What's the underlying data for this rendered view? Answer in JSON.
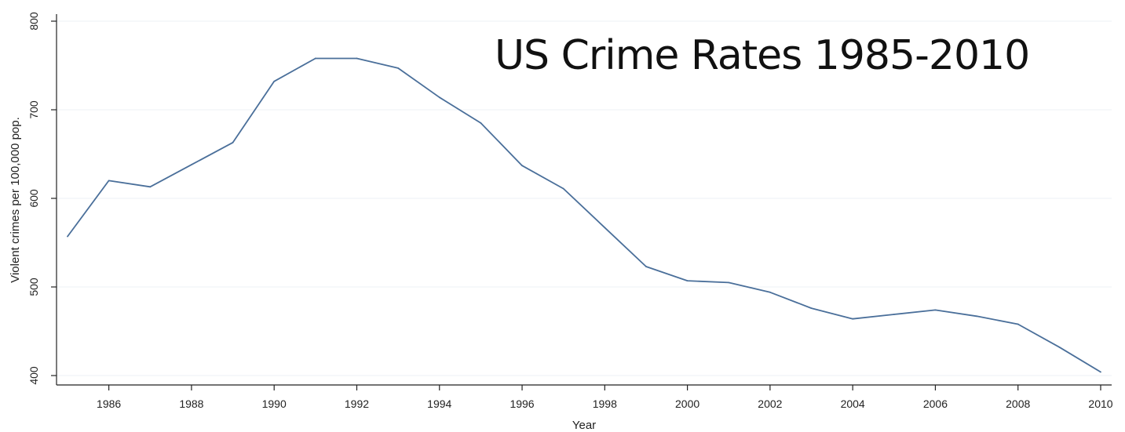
{
  "chart_data": {
    "type": "line",
    "title": "US Crime Rates 1985-2010",
    "xlabel": "Year",
    "ylabel": "Violent crimes per 100,000 pop.",
    "xlim": [
      1985,
      2010
    ],
    "ylim": [
      400,
      800
    ],
    "x_ticks": [
      "1986",
      "1988",
      "1990",
      "1992",
      "1994",
      "1996",
      "1998",
      "2000",
      "2002",
      "2004",
      "2006",
      "2008",
      "2010"
    ],
    "y_ticks": [
      "400",
      "500",
      "600",
      "700",
      "800"
    ],
    "grid": "horizontal",
    "series": [
      {
        "color": "#4a6f9a",
        "x": [
          1985,
          1986,
          1987,
          1988,
          1989,
          1990,
          1991,
          1992,
          1993,
          1994,
          1995,
          1996,
          1997,
          1998,
          1999,
          2000,
          2001,
          2002,
          2003,
          2004,
          2005,
          2006,
          2007,
          2008,
          2009,
          2010
        ],
        "values": [
          557,
          620,
          613,
          638,
          663,
          732,
          758,
          758,
          747,
          714,
          685,
          637,
          611,
          567,
          523,
          507,
          505,
          494,
          476,
          464,
          469,
          474,
          467,
          458,
          432,
          404
        ]
      }
    ]
  }
}
